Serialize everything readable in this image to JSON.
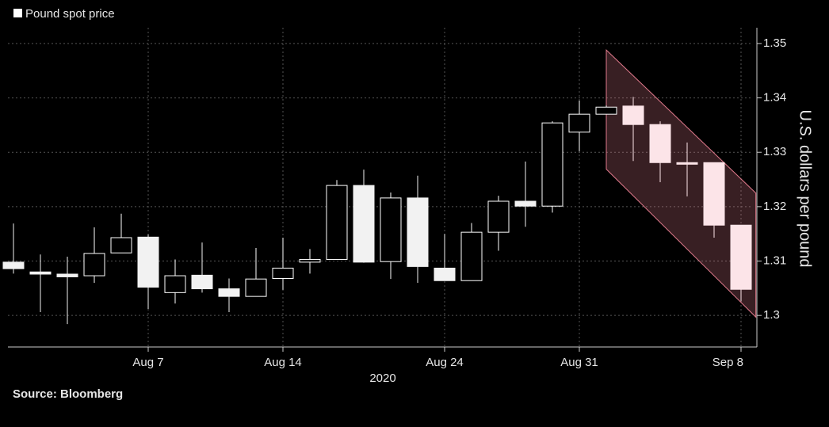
{
  "chart_data": {
    "type": "candlestick",
    "legend": "Pound spot price",
    "legend_color": "#ffffff",
    "y_label": "U.S. dollars per pound",
    "x_label": "2020",
    "source": "Source: Bloomberg",
    "categories": [
      "",
      "",
      "",
      "",
      "",
      "Aug 7",
      "",
      "",
      "",
      "",
      "Aug 14",
      "",
      "",
      "",
      "",
      "",
      "Aug 24",
      "",
      "",
      "",
      "",
      "Aug 31",
      "",
      "",
      "",
      "",
      "",
      "Sep 8"
    ],
    "open": [
      1.3098,
      1.308,
      1.3076,
      1.3073,
      1.3115,
      1.3144,
      1.3042,
      1.3074,
      1.3049,
      1.3035,
      1.3068,
      1.3098,
      1.3103,
      1.3239,
      1.3099,
      1.3216,
      1.3087,
      1.3064,
      1.3153,
      1.321,
      1.3201,
      1.3337,
      1.337,
      1.3385,
      1.3351,
      1.3281,
      1.3281,
      1.3166
    ],
    "high": [
      1.3169,
      1.3112,
      1.3108,
      1.3162,
      1.3187,
      1.3149,
      1.3103,
      1.3134,
      1.3068,
      1.3124,
      1.3143,
      1.3122,
      1.3249,
      1.3268,
      1.3226,
      1.3257,
      1.315,
      1.317,
      1.322,
      1.3283,
      1.3357,
      1.3395,
      1.3386,
      1.3402,
      1.3357,
      1.3318,
      1.3281,
      1.3166
    ],
    "low": [
      1.3077,
      1.3006,
      1.2984,
      1.306,
      1.3115,
      1.3012,
      1.3022,
      1.3042,
      1.3006,
      1.3035,
      1.3047,
      1.3077,
      1.3103,
      1.3097,
      1.3067,
      1.306,
      1.3064,
      1.3064,
      1.3119,
      1.3163,
      1.3189,
      1.3302,
      1.337,
      1.3284,
      1.3245,
      1.3219,
      1.3143,
      1.3026
    ],
    "close": [
      1.3086,
      1.3076,
      1.3071,
      1.3114,
      1.3143,
      1.3052,
      1.3073,
      1.3049,
      1.3035,
      1.3067,
      1.3087,
      1.3103,
      1.3239,
      1.3098,
      1.3216,
      1.309,
      1.3064,
      1.3153,
      1.321,
      1.3201,
      1.3354,
      1.337,
      1.3383,
      1.3351,
      1.3281,
      1.3278,
      1.3166,
      1.3048
    ],
    "colors": [
      "#f2f2f2",
      "#f2f2f2",
      "#f2f2f2",
      "#ffffff",
      "#ffffff",
      "#f2f2f2",
      "#ffffff",
      "#f2f2f2",
      "#f2f2f2",
      "#ffffff",
      "#ffffff",
      "#ffffff",
      "#ffffff",
      "#f2f2f2",
      "#ffffff",
      "#f2f2f2",
      "#f2f2f2",
      "#ffffff",
      "#ffffff",
      "#f2f2f2",
      "#ffffff",
      "#ffffff",
      "#ffffff",
      "#fce4e8",
      "#fce4e8",
      "#fce4e8",
      "#fce4e8",
      "#fce4e8"
    ],
    "channel": {
      "x": [
        22,
        27.55
      ],
      "upper": [
        1.3488,
        1.3225
      ],
      "lower": [
        1.3269,
        1.2997
      ],
      "color": "#e07a8c"
    },
    "ylim": [
      1.2942,
      1.3529
    ],
    "yticks": [
      1.3,
      1.31,
      1.32,
      1.33,
      1.34,
      1.35
    ],
    "grid": true
  }
}
